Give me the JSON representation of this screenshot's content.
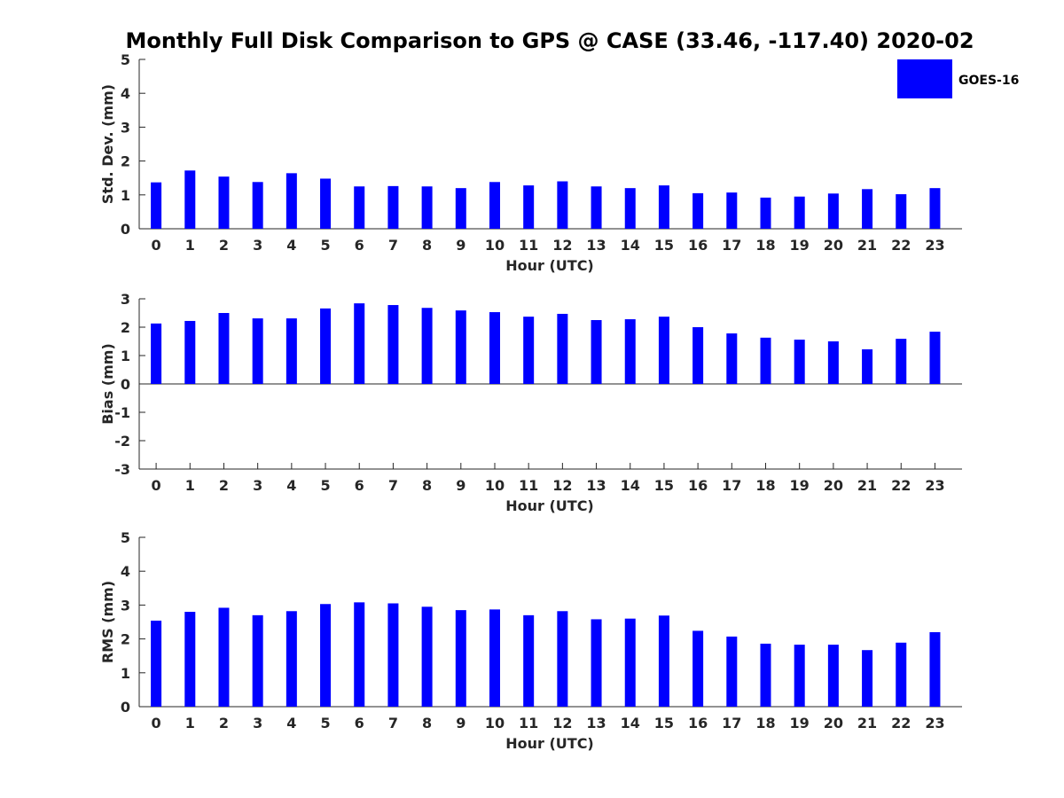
{
  "title": "Monthly Full Disk Comparison to GPS @ CASE (33.46, -117.40) 2020-02",
  "legend": {
    "label": "GOES-16",
    "color": "#0000ff",
    "placement": "top-right"
  },
  "colors": {
    "bar": "#0000ff",
    "axis": "#262626"
  },
  "chart_data": [
    {
      "type": "bar",
      "xlabel": "Hour (UTC)",
      "ylabel": "Std. Dev. (mm)",
      "ylim": [
        0,
        5
      ],
      "yticks": [
        0,
        1,
        2,
        3,
        4,
        5
      ],
      "categories": [
        "0",
        "1",
        "2",
        "3",
        "4",
        "5",
        "6",
        "7",
        "8",
        "9",
        "10",
        "11",
        "12",
        "13",
        "14",
        "15",
        "16",
        "17",
        "18",
        "19",
        "20",
        "21",
        "22",
        "23"
      ],
      "series": [
        {
          "name": "GOES-16",
          "values": [
            1.37,
            1.72,
            1.54,
            1.38,
            1.64,
            1.48,
            1.25,
            1.26,
            1.25,
            1.2,
            1.38,
            1.28,
            1.4,
            1.25,
            1.2,
            1.28,
            1.05,
            1.07,
            0.92,
            0.95,
            1.04,
            1.17,
            1.02,
            1.2
          ]
        }
      ],
      "grid": false
    },
    {
      "type": "bar",
      "xlabel": "Hour (UTC)",
      "ylabel": "Bias (mm)",
      "ylim": [
        -3,
        3
      ],
      "yticks": [
        -3,
        -2,
        -1,
        0,
        1,
        2,
        3
      ],
      "categories": [
        "0",
        "1",
        "2",
        "3",
        "4",
        "5",
        "6",
        "7",
        "8",
        "9",
        "10",
        "11",
        "12",
        "13",
        "14",
        "15",
        "16",
        "17",
        "18",
        "19",
        "20",
        "21",
        "22",
        "23"
      ],
      "series": [
        {
          "name": "GOES-16",
          "values": [
            2.13,
            2.22,
            2.5,
            2.31,
            2.31,
            2.66,
            2.84,
            2.78,
            2.68,
            2.59,
            2.53,
            2.37,
            2.47,
            2.25,
            2.28,
            2.37,
            2.0,
            1.78,
            1.63,
            1.56,
            1.5,
            1.22,
            1.59,
            1.84
          ]
        }
      ],
      "grid": false
    },
    {
      "type": "bar",
      "xlabel": "Hour (UTC)",
      "ylabel": "RMS (mm)",
      "ylim": [
        0,
        5
      ],
      "yticks": [
        0,
        1,
        2,
        3,
        4,
        5
      ],
      "categories": [
        "0",
        "1",
        "2",
        "3",
        "4",
        "5",
        "6",
        "7",
        "8",
        "9",
        "10",
        "11",
        "12",
        "13",
        "14",
        "15",
        "16",
        "17",
        "18",
        "19",
        "20",
        "21",
        "22",
        "23"
      ],
      "series": [
        {
          "name": "GOES-16",
          "values": [
            2.54,
            2.8,
            2.92,
            2.7,
            2.82,
            3.03,
            3.08,
            3.05,
            2.95,
            2.85,
            2.87,
            2.7,
            2.82,
            2.58,
            2.6,
            2.69,
            2.24,
            2.07,
            1.86,
            1.83,
            1.83,
            1.67,
            1.89,
            2.2
          ]
        }
      ],
      "grid": false
    }
  ]
}
